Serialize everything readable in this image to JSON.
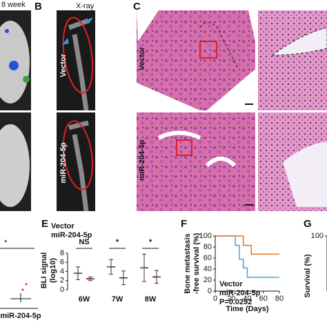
{
  "panels": {
    "a": {
      "title": "8 week"
    },
    "b": {
      "label": "B",
      "title": "X-ray",
      "rows": [
        "Vector",
        "miR-204-5p"
      ]
    },
    "c": {
      "label": "C",
      "rows": [
        "Vector",
        "miR-204-5p"
      ]
    },
    "d": {
      "annotation": "*",
      "category": "miR-204-5p"
    }
  },
  "chart_data": [
    {
      "type": "errorbar",
      "label": "E",
      "ylabel": [
        "BLI signal",
        "(log10)"
      ],
      "categories": [
        "6W",
        "7W",
        "8W"
      ],
      "series": [
        {
          "name": "Vector",
          "color": "#3aa7d9",
          "values": [
            3.6,
            5,
            4.8
          ],
          "errors": [
            1.4,
            1.6,
            3
          ]
        },
        {
          "name": "miR-204-5p",
          "color": "#e8302a",
          "values": [
            2.4,
            2.6,
            2.8
          ],
          "errors": [
            0.4,
            1.5,
            1.4
          ]
        }
      ],
      "annotations": [
        "NS",
        "*",
        "*"
      ],
      "ylim": [
        0,
        8
      ],
      "yticks": [
        0,
        2,
        4,
        6,
        8
      ]
    },
    {
      "type": "line",
      "label": "F",
      "ylabel": [
        "Bone metastasis",
        "-free survival (%)"
      ],
      "xlabel": "Time (Days)",
      "series": [
        {
          "name": "Vector",
          "color": "#3aa7d9",
          "x": [
            0,
            25,
            25,
            30,
            30,
            35,
            35,
            40,
            40,
            80
          ],
          "values": [
            100,
            100,
            83,
            83,
            58,
            58,
            42,
            42,
            25,
            25
          ]
        },
        {
          "name": "miR-204-5p",
          "color": "#e8742a",
          "x": [
            0,
            35,
            35,
            45,
            45,
            80
          ],
          "values": [
            100,
            100,
            83,
            83,
            67,
            67
          ]
        }
      ],
      "annotation": "P=0.0292",
      "xlim": [
        0,
        80
      ],
      "xticks": [
        0,
        20,
        40,
        60,
        80
      ],
      "ylim": [
        0,
        100
      ],
      "yticks": [
        0,
        20,
        40,
        60,
        80,
        100
      ]
    },
    {
      "type": "axis",
      "label": "G",
      "ylabel": "Survival (%)",
      "ylim": [
        0,
        100
      ],
      "yticks": [
        100
      ]
    }
  ]
}
